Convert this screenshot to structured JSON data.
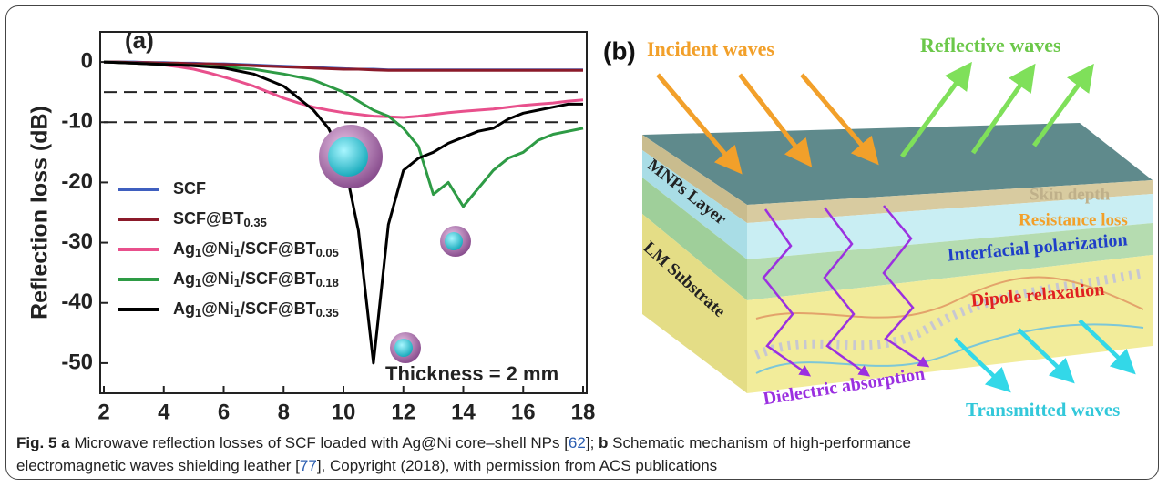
{
  "chart_data": {
    "type": "line",
    "panel_label": "(a)",
    "y_label": "Reflection loss (dB)",
    "annotation": "Thickness = 2 mm",
    "x": [
      2,
      2.5,
      3,
      3.5,
      4,
      4.5,
      5,
      5.5,
      6,
      6.5,
      7,
      7.5,
      8,
      8.5,
      9,
      9.5,
      10,
      10.5,
      11,
      11.5,
      12,
      12.5,
      13,
      13.5,
      14,
      14.5,
      15,
      15.5,
      16,
      16.5,
      17,
      17.5,
      18
    ],
    "series": [
      {
        "name": "SCF",
        "color": "#3f5fbf",
        "values": [
          0,
          0,
          0,
          -0.1,
          -0.1,
          -0.2,
          -0.2,
          -0.3,
          -0.3,
          -0.4,
          -0.5,
          -0.6,
          -0.7,
          -0.8,
          -0.9,
          -1,
          -1.1,
          -1.2,
          -1.2,
          -1.3,
          -1.3,
          -1.3,
          -1.3,
          -1.3,
          -1.3,
          -1.3,
          -1.3,
          -1.3,
          -1.3,
          -1.3,
          -1.3,
          -1.3,
          -1.3
        ]
      },
      {
        "name": "SCF@BT0.35",
        "color": "#8b1a2a",
        "values": [
          0,
          0,
          -0.1,
          -0.1,
          -0.2,
          -0.2,
          -0.3,
          -0.3,
          -0.4,
          -0.5,
          -0.6,
          -0.7,
          -0.8,
          -0.9,
          -1,
          -1.1,
          -1.2,
          -1.2,
          -1.3,
          -1.4,
          -1.4,
          -1.4,
          -1.4,
          -1.4,
          -1.4,
          -1.4,
          -1.4,
          -1.4,
          -1.4,
          -1.4,
          -1.4,
          -1.4,
          -1.4
        ]
      },
      {
        "name": "Ag1@Ni1/SCF@BT0.05",
        "color": "#e8508c",
        "values": [
          0,
          -0.1,
          -0.2,
          -0.3,
          -0.5,
          -0.8,
          -1.2,
          -1.8,
          -2.5,
          -3.2,
          -4,
          -5,
          -6,
          -6.8,
          -7.5,
          -8,
          -8.4,
          -8.7,
          -9,
          -9.1,
          -9.2,
          -9,
          -8.7,
          -8.4,
          -8.2,
          -8,
          -7.8,
          -7.5,
          -7.2,
          -7,
          -6.8,
          -6.5,
          -6.3
        ]
      },
      {
        "name": "Ag1@Ni1/SCF@BT0.18",
        "color": "#2e9b45",
        "values": [
          0,
          -0.1,
          -0.2,
          -0.3,
          -0.4,
          -0.5,
          -0.6,
          -0.7,
          -0.8,
          -1,
          -1.2,
          -1.6,
          -2,
          -2.5,
          -3,
          -4,
          -5,
          -6.5,
          -8,
          -9,
          -11,
          -14,
          -22,
          -20,
          -24,
          -21,
          -18,
          -16,
          -15,
          -13,
          -12,
          -11.5,
          -11
        ]
      },
      {
        "name": "Ag1@Ni1/SCF@BT0.35",
        "color": "#000000",
        "values": [
          0,
          -0.1,
          -0.2,
          -0.3,
          -0.4,
          -0.5,
          -0.6,
          -0.8,
          -1,
          -1.5,
          -2,
          -3,
          -4,
          -6,
          -8,
          -11,
          -16,
          -28,
          -50,
          -27,
          -18,
          -16,
          -15,
          -13.5,
          -12.5,
          -11.5,
          -11,
          -9.5,
          -8.5,
          -8,
          -7.5,
          -7,
          -7
        ]
      }
    ],
    "reference_lines": [
      -5,
      -10
    ],
    "xlim": [
      2,
      18
    ],
    "xticks": [
      2,
      4,
      6,
      8,
      10,
      12,
      14,
      16,
      18
    ],
    "ylim": [
      -55,
      5
    ],
    "yticks": [
      0,
      -10,
      -20,
      -30,
      -40,
      -50
    ]
  },
  "diagram": {
    "panel_label": "(b)",
    "labels": {
      "incident": "Incident waves",
      "reflective": "Reflective waves",
      "skin": "Skin depth",
      "resistance": "Resistance loss",
      "interfacial": "Interfacial polarization",
      "dipole": "Dipole relaxation",
      "mnps": "MNPs Layer",
      "lm": "LM Substrate",
      "dielectric": "Dielectric absorption",
      "transmitted": "Transmitted waves"
    }
  },
  "caption": {
    "label": "Fig. 5",
    "a": "a",
    "text_a": " Microwave reflection losses of SCF loaded with Ag@Ni core–shell NPs [",
    "ref_a": "62",
    "sep": "]; ",
    "b": "b",
    "text_b": " Schematic mechanism of high-performance electromagnetic waves shielding leather [",
    "ref_b": "77",
    "tail": "], Copyright (2018), with permission from ACS publications"
  }
}
